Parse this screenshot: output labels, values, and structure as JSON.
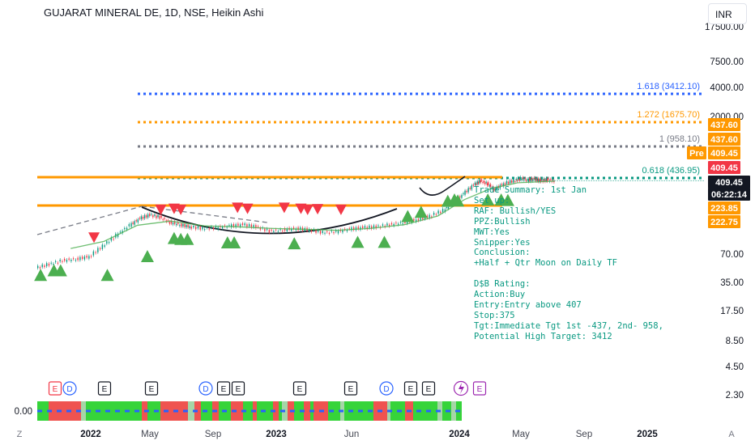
{
  "header": {
    "title": "GUJARAT MINERAL DE, 1D, NSE, Heikin Ashi",
    "currency_button": "INR"
  },
  "chart_data": {
    "type": "candlestick",
    "log_scale": true,
    "grid": false,
    "y_ticks": [
      "17500.00",
      "7500.00",
      "4000.00",
      "2000.00",
      "70.00",
      "35.00",
      "17.50",
      "8.50",
      "4.50",
      "2.30"
    ],
    "x_ticks": [
      "2022",
      "May",
      "Sep",
      "2023",
      "Jun",
      "2024",
      "May",
      "Sep",
      "2025"
    ],
    "fib_levels": [
      {
        "label": "1.618 (3412.10)",
        "value": 3412.1,
        "color": "#2962ff"
      },
      {
        "label": "1.272 (1675.70)",
        "value": 1675.7,
        "color": "#ff9800"
      },
      {
        "label": "1 (958.10)",
        "value": 958.1,
        "color": "#787b86"
      },
      {
        "label": "0.618 (436.95)",
        "value": 436.95,
        "color": "#089981"
      }
    ],
    "horizontal_levels": [
      {
        "value": 437,
        "color": "#ff9800"
      },
      {
        "value": 224,
        "color": "#ff9800"
      }
    ],
    "price_labels": [
      {
        "text": "437.60",
        "color": "#ff9800"
      },
      {
        "text": "437.60",
        "color": "#ff9800"
      },
      {
        "text": "Pre",
        "color": "#ff9800"
      },
      {
        "text": "409.45",
        "color": "#ff9800"
      },
      {
        "text": "409.45",
        "color": "#f23645"
      },
      {
        "text": "409.45",
        "color": "#131722"
      },
      {
        "text": "06:22:14",
        "color": "#131722"
      },
      {
        "text": "223.85",
        "color": "#ff9800"
      },
      {
        "text": "222.75",
        "color": "#ff9800"
      }
    ],
    "last_price": 409.45,
    "countdown": "06:22:14",
    "price_series": [
      [
        0,
        50
      ],
      [
        0.02,
        55
      ],
      [
        0.04,
        60
      ],
      [
        0.06,
        62
      ],
      [
        0.08,
        66
      ],
      [
        0.1,
        85
      ],
      [
        0.12,
        110
      ],
      [
        0.14,
        140
      ],
      [
        0.155,
        165
      ],
      [
        0.17,
        180
      ],
      [
        0.185,
        170
      ],
      [
        0.2,
        150
      ],
      [
        0.215,
        142
      ],
      [
        0.23,
        135
      ],
      [
        0.25,
        130
      ],
      [
        0.27,
        132
      ],
      [
        0.29,
        138
      ],
      [
        0.31,
        142
      ],
      [
        0.33,
        135
      ],
      [
        0.35,
        122
      ],
      [
        0.37,
        125
      ],
      [
        0.39,
        130
      ],
      [
        0.41,
        125
      ],
      [
        0.43,
        118
      ],
      [
        0.45,
        120
      ],
      [
        0.47,
        128
      ],
      [
        0.49,
        132
      ],
      [
        0.51,
        135
      ],
      [
        0.53,
        142
      ],
      [
        0.55,
        150
      ],
      [
        0.57,
        160
      ],
      [
        0.59,
        175
      ],
      [
        0.61,
        200
      ],
      [
        0.625,
        245
      ],
      [
        0.64,
        300
      ],
      [
        0.655,
        370
      ],
      [
        0.665,
        410
      ],
      [
        0.675,
        380
      ],
      [
        0.685,
        330
      ],
      [
        0.7,
        380
      ],
      [
        0.715,
        410
      ],
      [
        0.725,
        430
      ],
      [
        0.735,
        415
      ],
      [
        0.745,
        425
      ],
      [
        0.755,
        410
      ],
      [
        0.765,
        420
      ],
      [
        0.775,
        409.45
      ]
    ],
    "ma_series": [
      [
        0.05,
        80
      ],
      [
        0.1,
        95
      ],
      [
        0.15,
        140
      ],
      [
        0.2,
        155
      ],
      [
        0.25,
        138
      ],
      [
        0.3,
        135
      ],
      [
        0.35,
        130
      ],
      [
        0.4,
        127
      ],
      [
        0.45,
        124
      ],
      [
        0.5,
        130
      ],
      [
        0.55,
        142
      ],
      [
        0.6,
        175
      ],
      [
        0.64,
        260
      ],
      [
        0.68,
        340
      ],
      [
        0.72,
        390
      ],
      [
        0.775,
        405
      ]
    ],
    "signals_sell": [
      [
        0.085,
        105
      ],
      [
        0.185,
        205
      ],
      [
        0.205,
        210
      ],
      [
        0.215,
        205
      ],
      [
        0.3,
        215
      ],
      [
        0.315,
        210
      ],
      [
        0.37,
        215
      ],
      [
        0.395,
        210
      ],
      [
        0.405,
        205
      ],
      [
        0.42,
        208
      ],
      [
        0.455,
        205
      ]
    ],
    "signals_buy": [
      [
        0.005,
        42
      ],
      [
        0.025,
        47
      ],
      [
        0.035,
        47
      ],
      [
        0.105,
        42
      ],
      [
        0.165,
        66
      ],
      [
        0.205,
        102
      ],
      [
        0.215,
        100
      ],
      [
        0.225,
        100
      ],
      [
        0.285,
        92
      ],
      [
        0.295,
        92
      ],
      [
        0.385,
        90
      ],
      [
        0.48,
        93
      ],
      [
        0.52,
        93
      ],
      [
        0.555,
        173
      ],
      [
        0.575,
        192
      ],
      [
        0.615,
        250
      ],
      [
        0.625,
        258
      ],
      [
        0.63,
        252
      ],
      [
        0.675,
        258
      ],
      [
        0.695,
        258
      ],
      [
        0.705,
        255
      ]
    ],
    "event_markers": [
      "E",
      "D",
      "E",
      "E",
      "D",
      "E",
      "E",
      "E",
      "E",
      "D",
      "E",
      "E"
    ],
    "ribbon_value": "0.00"
  },
  "trade_summary": {
    "lines": [
      "Trade Summary: 1st Jan",
      "Set up:",
      "RAF: Bullish/YES",
      "PPZ:Bullish",
      "MWT:Yes",
      "Snipper:Yes",
      "Conclusion:",
      "+Half + Qtr Moon on Daily TF",
      "",
      "D$B Rating:",
      "Action:Buy",
      "Entry:Entry above 407",
      "Stop:375",
      "Tgt:Immediate Tgt 1st -437, 2nd- 958,",
      "Potential High Target: 3412"
    ]
  },
  "bottom_bar": {
    "left": "Z",
    "right": "A"
  }
}
